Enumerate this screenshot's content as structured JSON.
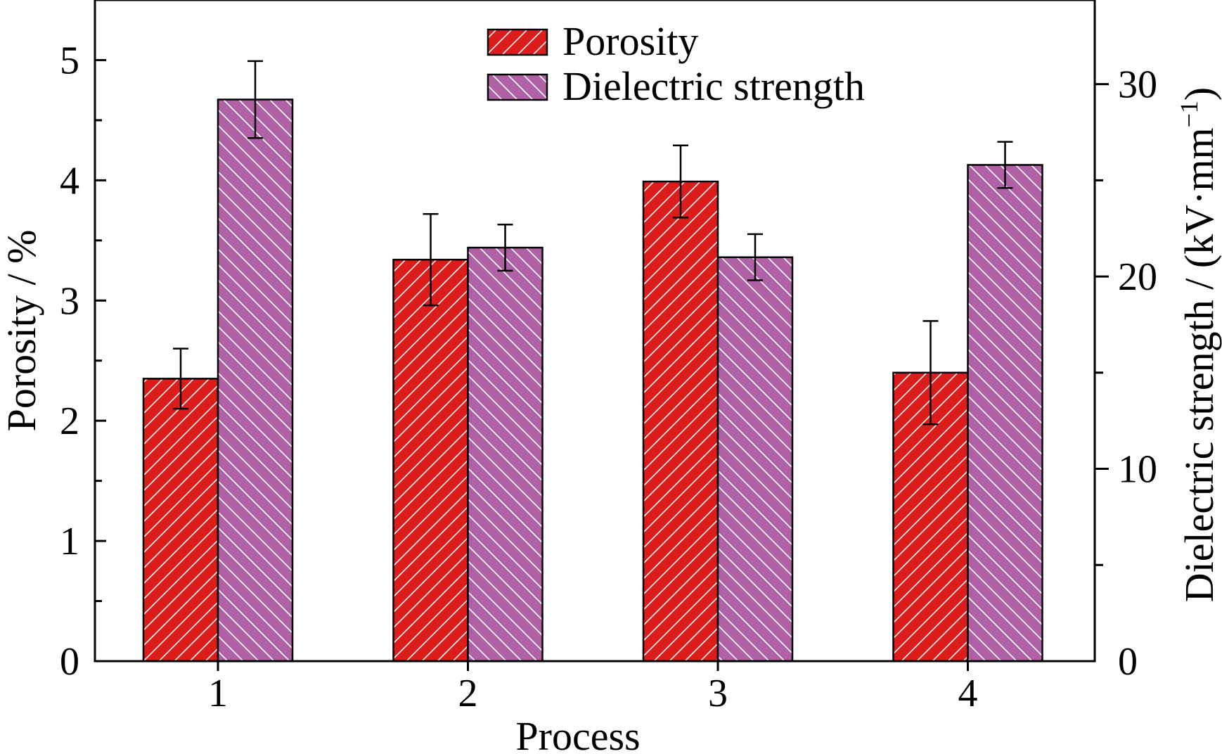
{
  "chart_data": {
    "type": "bar",
    "categories": [
      "1",
      "2",
      "3",
      "4"
    ],
    "xlabel": "Process",
    "ylabel_left": "Porosity / %",
    "ylabel_right": "Dielectric strength / (kV·mm",
    "ylabel_right_superscript": "−1",
    "ylabel_right_suffix": ")",
    "ylim_left": [
      0,
      5.5
    ],
    "yticks_left": [
      "0",
      "1",
      "2",
      "3",
      "4",
      "5"
    ],
    "ylim_right": [
      0,
      34.375
    ],
    "yticks_right": [
      "0",
      "10",
      "20",
      "30"
    ],
    "grid": false,
    "legend": "top-center",
    "series": [
      {
        "name": "Porosity",
        "axis": "left",
        "color": "#dd1c1c",
        "hatch": "forward",
        "values": [
          2.35,
          3.34,
          3.99,
          2.4
        ],
        "errors": [
          0.25,
          0.38,
          0.3,
          0.43
        ]
      },
      {
        "name": "Dielectric strength",
        "axis": "right",
        "color": "#b061a6",
        "hatch": "backward",
        "values": [
          29.2,
          21.5,
          21.0,
          25.8
        ],
        "errors": [
          2.0,
          1.2,
          1.2,
          1.2
        ]
      }
    ]
  }
}
